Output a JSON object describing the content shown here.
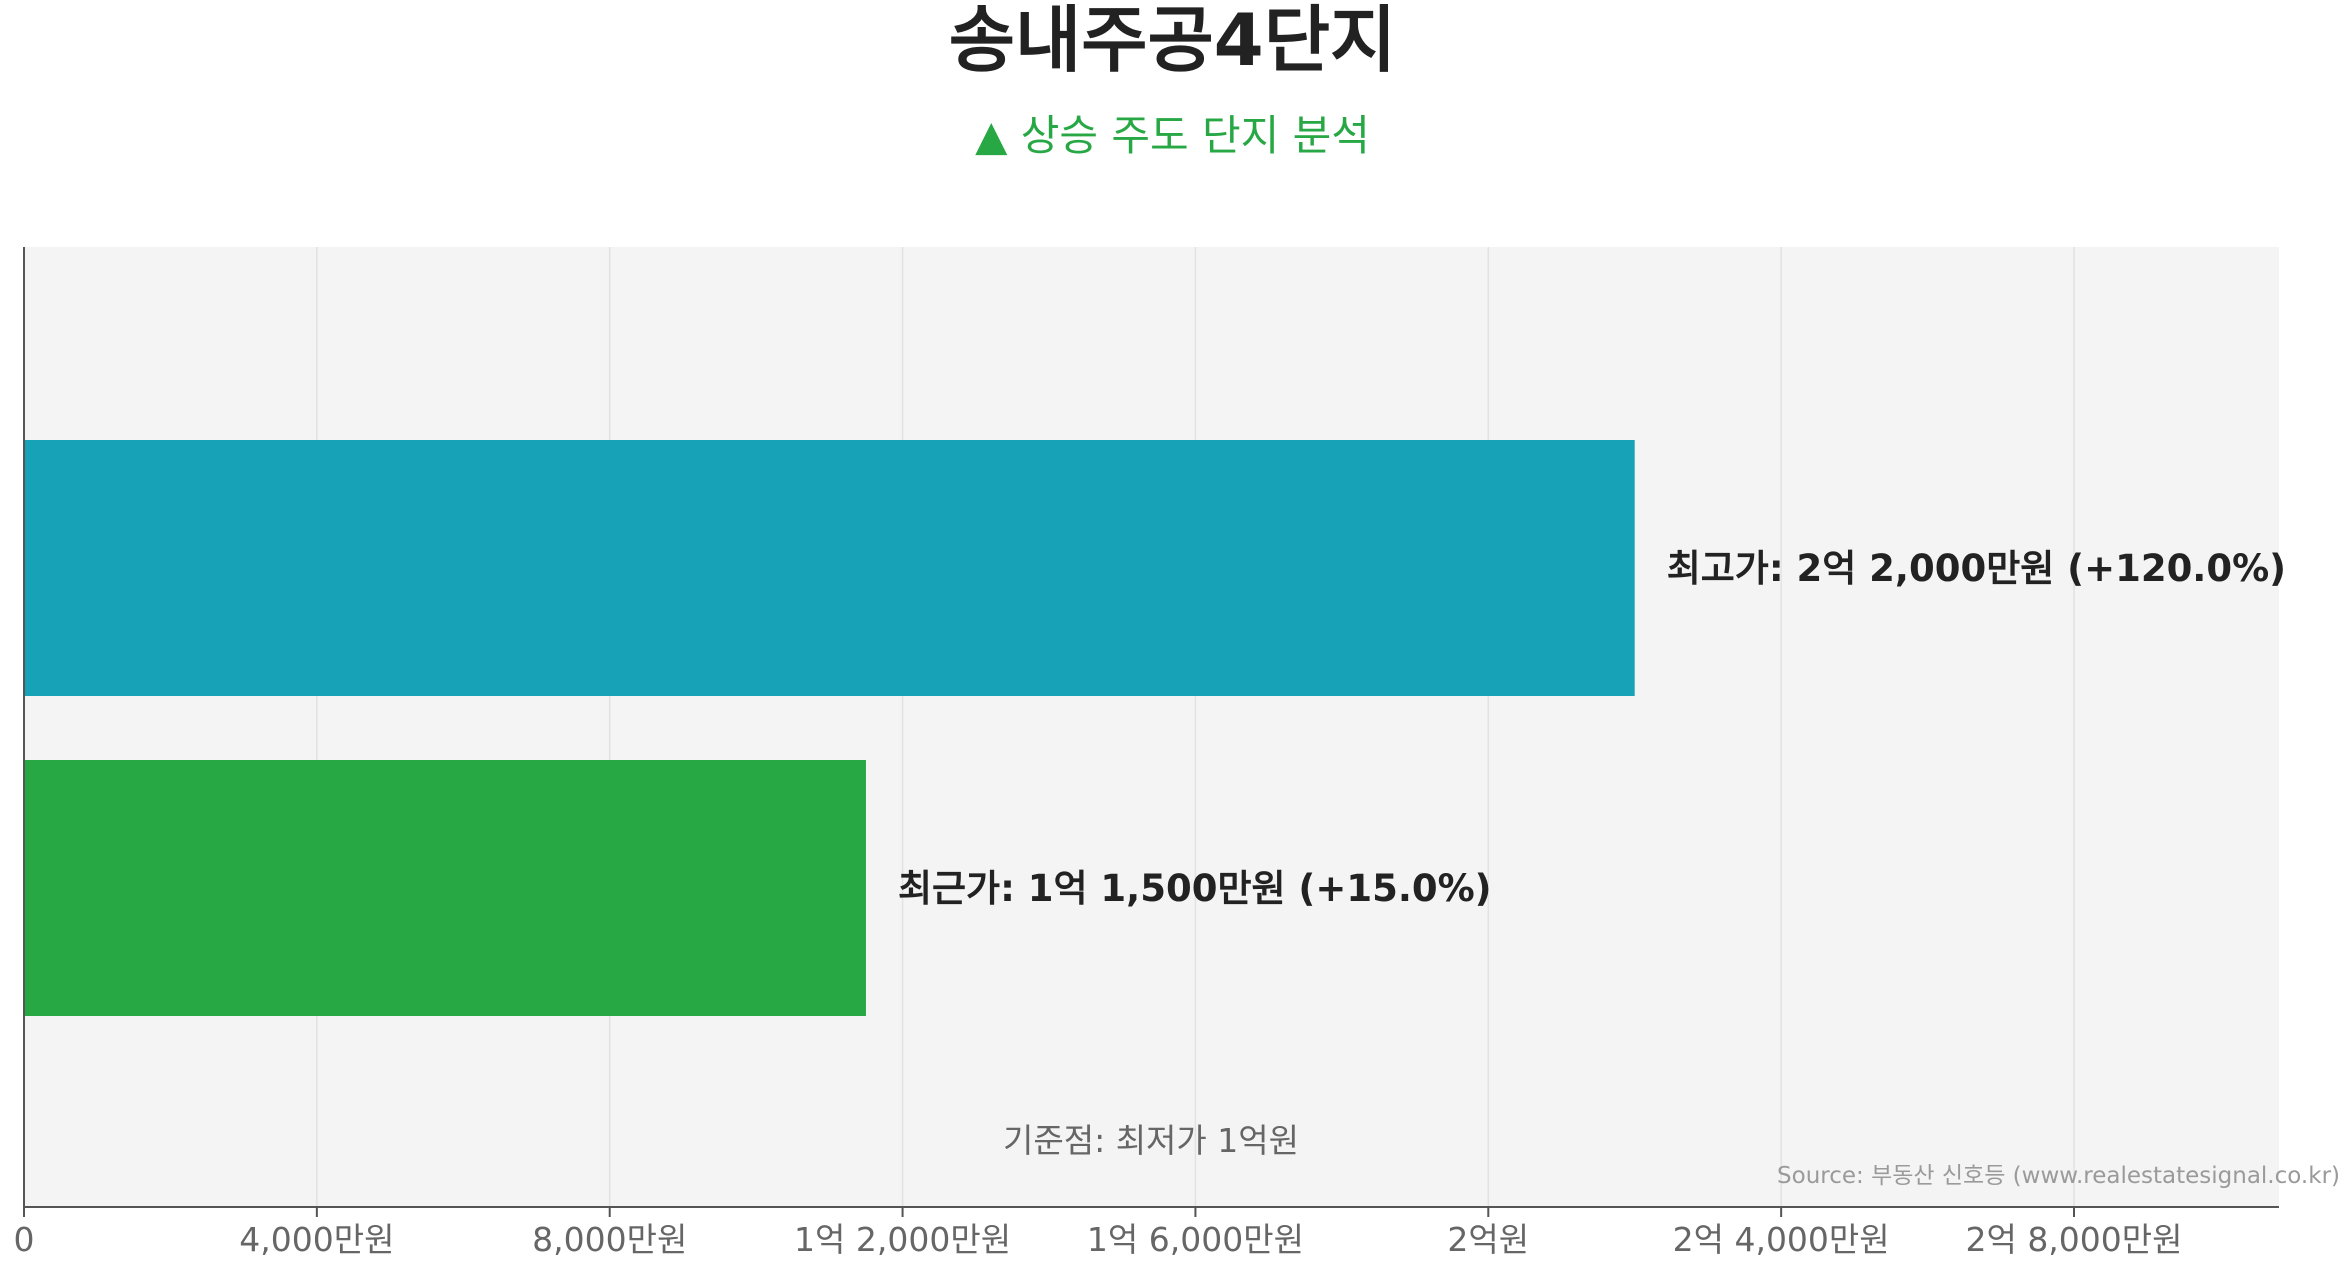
{
  "chart_data": {
    "type": "bar",
    "orientation": "horizontal",
    "title": "송내주공4단지",
    "subtitle": "▲ 상승 주도 단지 분석",
    "categories": [
      "최고가",
      "최근가"
    ],
    "values": [
      22000,
      11500
    ],
    "value_unit": "만원",
    "bar_labels": [
      "최고가: 2억 2,000만원 (+120.0%)",
      "최근가: 1억 1,500만원 (+15.0%)"
    ],
    "bar_colors": [
      "#18a2b8",
      "#28a745"
    ],
    "xlim": [
      0,
      30800
    ],
    "x_ticks": [
      0,
      4000,
      8000,
      12000,
      16000,
      20000,
      24000,
      28000
    ],
    "x_tick_labels": [
      "0",
      "4,000만원",
      "8,000만원",
      "1억 2,000만원",
      "1억 6,000만원",
      "2억원",
      "2억 4,000만원",
      "2억 8,000만원"
    ],
    "annotation": "기준점: 최저가 1억원",
    "source": "Source: 부동산 신호등 (www.realestatesignal.co.kr)",
    "grid": "vertical",
    "background_color": "#f4f4f4",
    "grid_color": "#e2e2e2"
  }
}
